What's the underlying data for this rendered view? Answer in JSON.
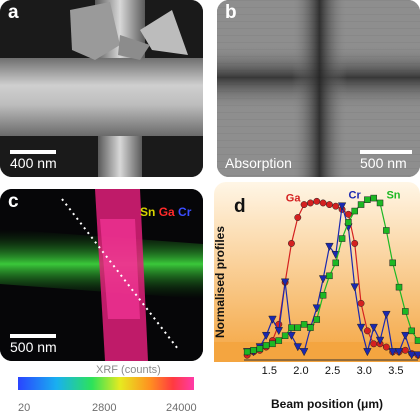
{
  "panel_a": {
    "letter": "a",
    "scale_label": "400 nm"
  },
  "panel_b": {
    "letter": "b",
    "mode_label": "Absorption",
    "scale_label": "500 nm"
  },
  "panel_c": {
    "letter": "c",
    "scale_label": "500 nm",
    "elements": [
      {
        "name": "Sn",
        "color": "#d8d400"
      },
      {
        "name": "Ga",
        "color": "#ff2a2a"
      },
      {
        "name": "Cr",
        "color": "#3a4dff"
      }
    ],
    "colorbar": {
      "title": "XRF (counts)",
      "ticks": [
        "20",
        "2800",
        "24000"
      ]
    }
  },
  "chart_data": {
    "type": "line",
    "panel_letter": "d",
    "xlabel": "Beam position (μm)",
    "ylabel": "Normalised profiles",
    "xlim": [
      1.1,
      3.85
    ],
    "ylim": [
      0,
      1.05
    ],
    "xticks": [
      "1.5",
      "2.0",
      "2.5",
      "3.0",
      "3.5"
    ],
    "series": [
      {
        "name": "Ga",
        "color": "#d42020",
        "marker": "circle",
        "x": [
          1.15,
          1.25,
          1.35,
          1.45,
          1.55,
          1.65,
          1.75,
          1.85,
          1.95,
          2.05,
          2.15,
          2.25,
          2.35,
          2.45,
          2.55,
          2.65,
          2.75,
          2.85,
          2.95,
          3.05,
          3.15,
          3.25,
          3.35,
          3.45,
          3.55,
          3.65,
          3.75,
          3.85
        ],
        "y": [
          0.03,
          0.05,
          0.06,
          0.08,
          0.12,
          0.22,
          0.48,
          0.72,
          0.88,
          0.96,
          0.97,
          0.98,
          0.97,
          0.96,
          0.95,
          0.93,
          0.9,
          0.72,
          0.35,
          0.18,
          0.1,
          0.1,
          0.08,
          0.05,
          0.05,
          0.06,
          0.04,
          0.03
        ]
      },
      {
        "name": "Cr",
        "color": "#1a28b0",
        "marker": "triangle-down",
        "x": [
          1.15,
          1.25,
          1.35,
          1.45,
          1.55,
          1.65,
          1.75,
          1.85,
          1.95,
          2.05,
          2.15,
          2.25,
          2.35,
          2.45,
          2.55,
          2.65,
          2.75,
          2.85,
          2.95,
          3.05,
          3.15,
          3.25,
          3.35,
          3.45,
          3.55,
          3.65,
          3.75,
          3.85
        ],
        "y": [
          0.05,
          0.05,
          0.08,
          0.15,
          0.25,
          0.18,
          0.48,
          0.15,
          0.08,
          0.05,
          0.2,
          0.32,
          0.5,
          0.7,
          0.65,
          0.95,
          0.82,
          0.45,
          0.2,
          0.05,
          0.2,
          0.12,
          0.28,
          0.05,
          0.05,
          0.15,
          0.03,
          0.03
        ]
      },
      {
        "name": "Sn",
        "color": "#1cb824",
        "marker": "square",
        "x": [
          1.15,
          1.25,
          1.35,
          1.45,
          1.55,
          1.65,
          1.75,
          1.85,
          1.95,
          2.05,
          2.15,
          2.25,
          2.35,
          2.45,
          2.55,
          2.65,
          2.75,
          2.85,
          2.95,
          3.05,
          3.15,
          3.25,
          3.35,
          3.45,
          3.55,
          3.65,
          3.75,
          3.85
        ],
        "y": [
          0.05,
          0.06,
          0.07,
          0.09,
          0.1,
          0.12,
          0.15,
          0.2,
          0.2,
          0.22,
          0.2,
          0.25,
          0.4,
          0.52,
          0.6,
          0.75,
          0.85,
          0.92,
          0.96,
          0.99,
          1.0,
          0.97,
          0.8,
          0.6,
          0.45,
          0.3,
          0.18,
          0.12
        ]
      }
    ]
  }
}
